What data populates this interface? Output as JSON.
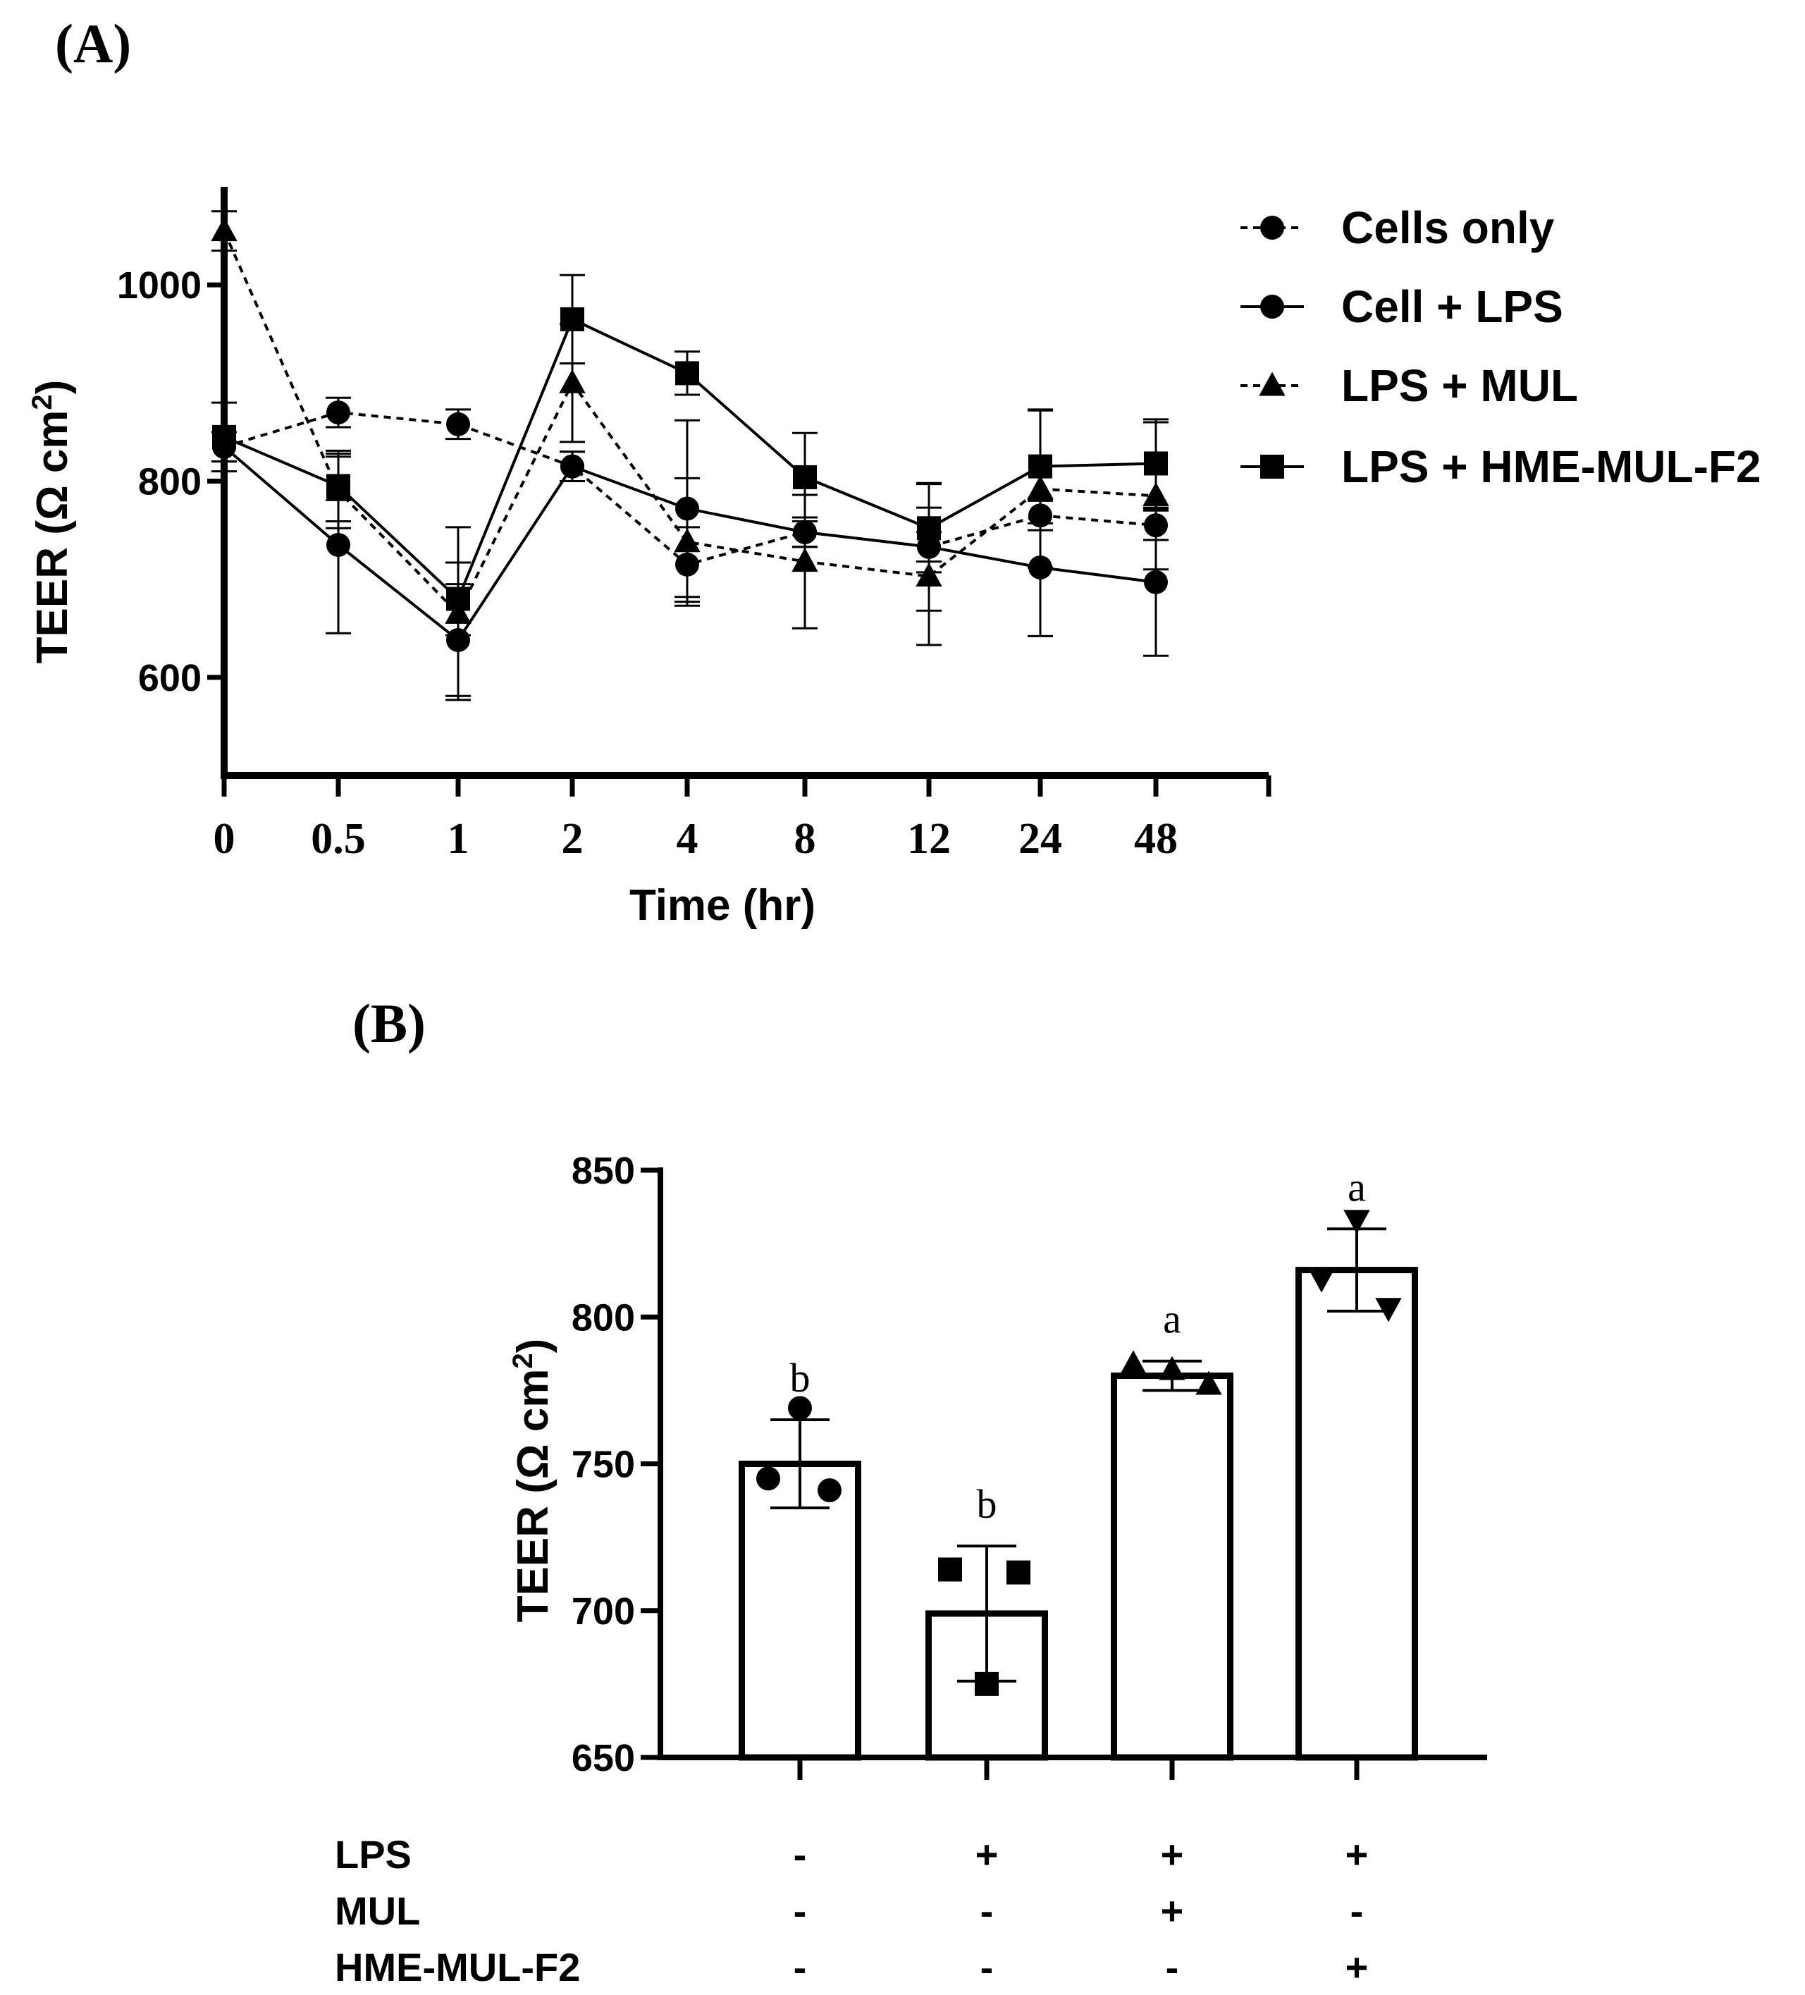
{
  "chart_data": [
    {
      "panel_label": "(A)",
      "type": "line",
      "xlabel": "Time (hr)",
      "ylabel": "TEER (Ω cm²)",
      "ylabel_main": "TEER (Ω cm",
      "ylabel_sup": "2",
      "ylabel_close": ")",
      "categories": [
        "0",
        "0.5",
        "1",
        "2",
        "4",
        "8",
        "12",
        "24",
        "48"
      ],
      "ylim": [
        500,
        1100
      ],
      "yticks": [
        600,
        800,
        1000
      ],
      "ytick_labels": [
        "600",
        "800",
        "1000"
      ],
      "legend_position": "top-right",
      "series": [
        {
          "name": "Cells only",
          "marker": "circle",
          "line": "dashed",
          "values": [
            835,
            870,
            858,
            815,
            715,
            748,
            733,
            765,
            755
          ],
          "errors": [
            15,
            15,
            15,
            15,
            38,
            15,
            15,
            15,
            15
          ]
        },
        {
          "name": "Cell + LPS",
          "marker": "circle",
          "line": "solid",
          "values": [
            835,
            735,
            638,
            815,
            772,
            748,
            733,
            712,
            697
          ],
          "errors": [
            15,
            90,
            57,
            15,
            90,
            15,
            65,
            70,
            75
          ]
        },
        {
          "name": "LPS + MUL",
          "marker": "triangle",
          "line": "dashed",
          "values": [
            1055,
            790,
            665,
            900,
            738,
            718,
            703,
            792,
            785
          ],
          "errors": [
            20,
            38,
            88,
            60,
            65,
            68,
            70,
            80,
            75
          ]
        },
        {
          "name": "LPS + HME-MUL-F2",
          "marker": "square",
          "line": "solid",
          "values": [
            845,
            795,
            680,
            965,
            910,
            804,
            752,
            815,
            818
          ],
          "errors": [
            35,
            36,
            37,
            45,
            22,
            45,
            45,
            58,
            45
          ]
        }
      ]
    },
    {
      "panel_label": "(B)",
      "type": "bar",
      "ylabel": "TEER (Ω cm²)",
      "ylabel_main": "TEER (Ω cm",
      "ylabel_sup": "2",
      "ylabel_close": ")",
      "ylim": [
        650,
        850
      ],
      "yticks": [
        650,
        700,
        750,
        800,
        850
      ],
      "ytick_labels": [
        "650",
        "700",
        "750",
        "800",
        "850"
      ],
      "bars": [
        {
          "value": 750,
          "error": 15,
          "letter": "b",
          "marker": "circle",
          "points": [
            769,
            745,
            741
          ]
        },
        {
          "value": 699,
          "error": 23,
          "letter": "b",
          "marker": "square",
          "points": [
            714,
            713,
            675
          ]
        },
        {
          "value": 780,
          "error": 5,
          "letter": "a",
          "marker": "triangle",
          "points": [
            784,
            782,
            777
          ]
        },
        {
          "value": 816,
          "error": 14,
          "letter": "a",
          "marker": "triangle-down",
          "points": [
            833,
            813,
            803
          ]
        }
      ],
      "conditions": [
        {
          "name": "LPS",
          "values": [
            "-",
            "+",
            "+",
            "+"
          ]
        },
        {
          "name": "MUL",
          "values": [
            "-",
            "-",
            "+",
            "-"
          ]
        },
        {
          "name": "HME-MUL-F2",
          "values": [
            "-",
            "-",
            "-",
            "+"
          ]
        }
      ]
    }
  ]
}
